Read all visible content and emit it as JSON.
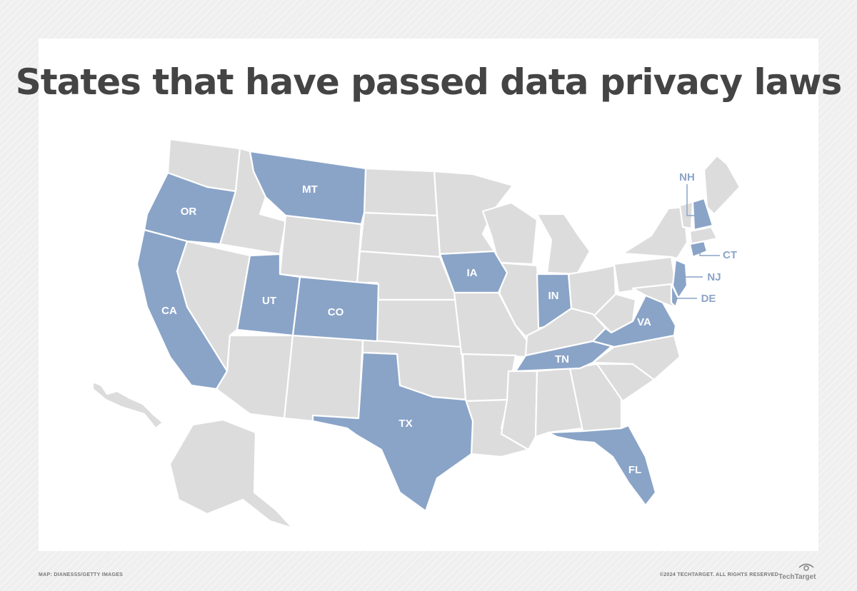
{
  "title": "States that have passed data privacy laws",
  "credit_left": "MAP: DIANESSS/GETTY IMAGES",
  "credit_right": "©2024 TECHTARGET. ALL RIGHTS RESERVED",
  "logo": {
    "text": "TechTarget",
    "icon": "eye-icon"
  },
  "colors": {
    "highlight": "#8aa4c8",
    "other": "#dcdcdc",
    "border": "#ffffff",
    "label_inside": "#ffffff",
    "label_outside": "#8aa4c8"
  },
  "legend_semantics": {
    "highlighted_means": "passed data privacy law"
  },
  "highlighted_states": [
    "OR",
    "CA",
    "MT",
    "UT",
    "CO",
    "TX",
    "IA",
    "IN",
    "TN",
    "FL",
    "VA",
    "NJ",
    "DE",
    "CT",
    "NH"
  ],
  "labels": {
    "OR": "OR",
    "CA": "CA",
    "MT": "MT",
    "UT": "UT",
    "CO": "CO",
    "TX": "TX",
    "IA": "IA",
    "IN": "IN",
    "TN": "TN",
    "FL": "FL",
    "VA": "VA",
    "NH": "NH",
    "CT": "CT",
    "NJ": "NJ",
    "DE": "DE"
  }
}
